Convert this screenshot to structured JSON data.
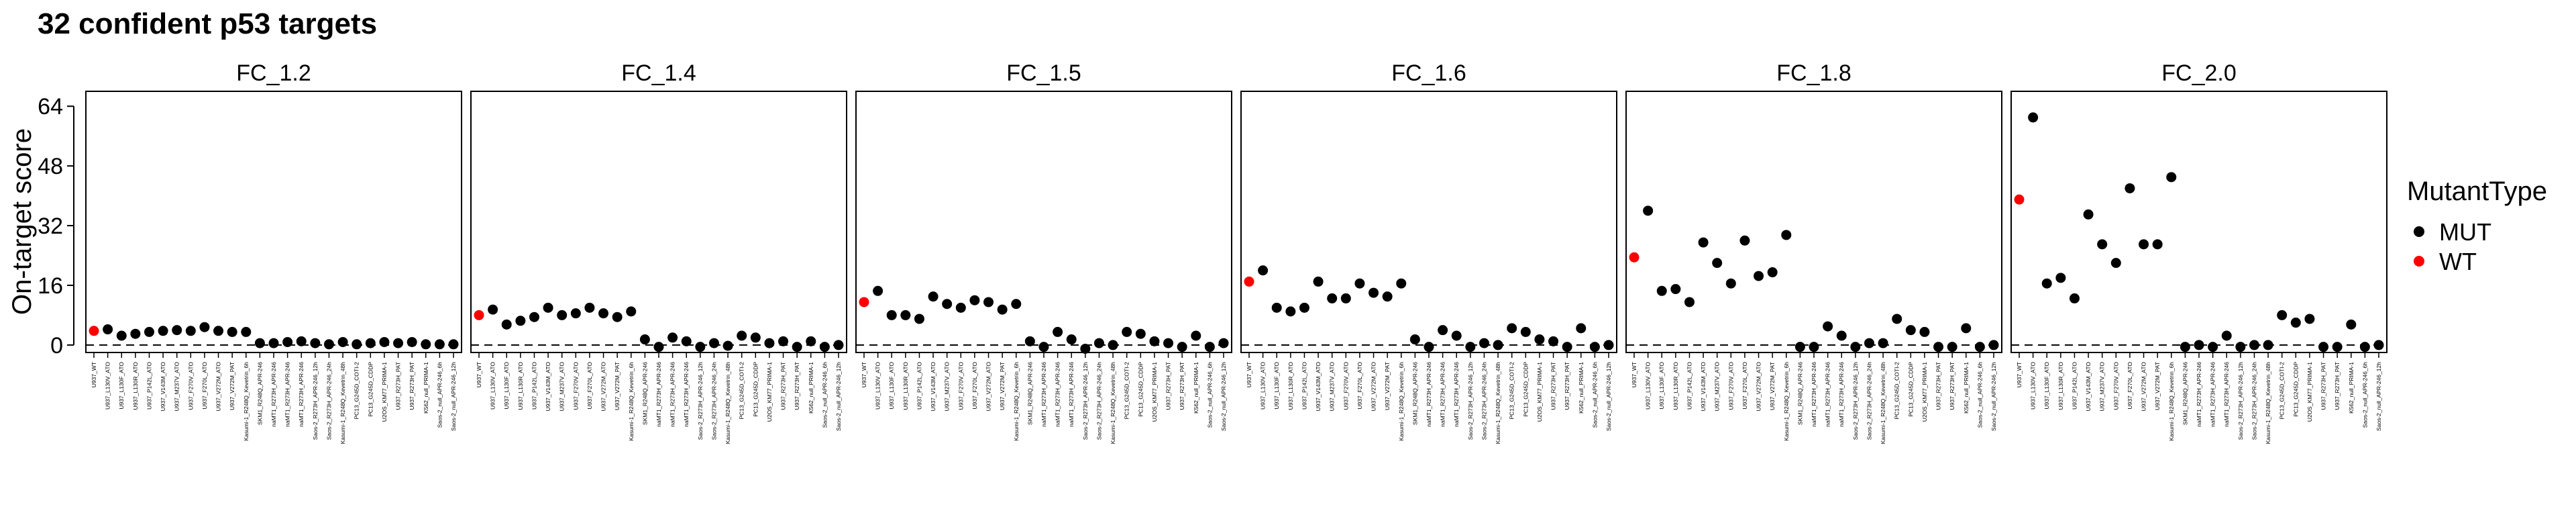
{
  "chart_data": {
    "type": "scatter",
    "title": "32 confident p53 targets",
    "ylabel": "On-target score",
    "xlabel": "",
    "ylim": [
      -2,
      68
    ],
    "yticks": [
      0,
      16,
      32,
      48,
      64
    ],
    "hline": 0,
    "grid": false,
    "legend": {
      "title": "MutantType",
      "position": "right",
      "entries": [
        {
          "label": "MUT",
          "color": "#000000"
        },
        {
          "label": "WT",
          "color": "#ff0000"
        }
      ]
    },
    "categories": [
      "U937_WT",
      "U937_L130V_ATO",
      "U937_L130F_ATO",
      "U937_L130R_ATO",
      "U937_P142L_ATO",
      "U937_V143M_ATO",
      "U937_M237V_ATO",
      "U937_F270V_ATO",
      "U937_F270L_ATO",
      "U937_V272M_ATO",
      "U937_V272M_PAT",
      "Kasumi-1_R248Q_Kevetrin_6h",
      "SKM1_R248Q_APR-246",
      "naMT1_R273H_APR-246",
      "naMT1_R273H_APR-246",
      "naMT1_R273H_APR-246",
      "Saos-2_R273H_APR-246_12h",
      "Saos-2_R273H_APR-246_24h",
      "Kasumi-1_R248Q_Kevetrin_48h",
      "PC13_G245D_COTI-2",
      "PC13_G245D_CDDP",
      "U2OS_KM77_PRIMA-1",
      "U937_R273H_PAT",
      "U937_R273H_PAT",
      "K562_null_PRIMA-1",
      "Saos-2_null_APR-246_6h",
      "Saos-2_null_APR-246_12h"
    ],
    "mutant_type": [
      "WT",
      "MUT",
      "MUT",
      "MUT",
      "MUT",
      "MUT",
      "MUT",
      "MUT",
      "MUT",
      "MUT",
      "MUT",
      "MUT",
      "MUT",
      "MUT",
      "MUT",
      "MUT",
      "MUT",
      "MUT",
      "MUT",
      "MUT",
      "MUT",
      "MUT",
      "MUT",
      "MUT",
      "MUT",
      "MUT",
      "MUT"
    ],
    "facet_categories": [
      [
        "U937_WT",
        "U937_L130V_ATO",
        "U937_L130F_ATO",
        "U937_L130R_ATO",
        "U937_P142L_ATO",
        "U937_V143M_ATO",
        "U937_M237V_ATO",
        "U937_F270V_ATO",
        "U937_F270L_ATO",
        "U937_V272M_ATO",
        "U937_V272M_PAT",
        "Kasumi-1_R248Q_Kevetrin_6h",
        "SKM1_R248Q_APR-246",
        "naMT1_R273H_APR-246",
        "naMT1_R273H_APR-246",
        "naMT1_R273H_APR-246",
        "Saos-2_R273H_APR-246_12h",
        "Saos-2_R273H_APR-246_24h",
        "Kasumi-1_R248Q_Kevetrin_48h",
        "PC13_G245D_COTI-2",
        "PC13_G245D_CDDP",
        "U2OS_KM77_PRIMA-1",
        "U937_R273H_PAT",
        "U937_R273H_PAT",
        "K562_null_PRIMA-1",
        "Saos-2_null_APR-246_6h",
        "Saos-2_null_APR-246_12h"
      ],
      [
        "U937_WT",
        "U937_L130V_ATO",
        "U937_L130F_ATO",
        "U937_L130R_ATO",
        "U937_P142L_ATO",
        "U937_V143M_ATO",
        "U937_M237V_ATO",
        "U937_F270V_ATO",
        "U937_F270L_ATO",
        "U937_V272M_ATO",
        "U937_V272M_PAT",
        "Kasumi-1_R248Q_Kevetrin_6h",
        "SKM1_R248Q_APR-246",
        "naMT1_R273H_APR-246",
        "naMT1_R273H_APR-246",
        "naMT1_R273H_APR-246",
        "Saos-2_R273H_APR-246_12h",
        "Saos-2_R273H_APR-246_24h",
        "Kasumi-1_R248Q_Kevetrin_48h",
        "PC13_G245D_COTI-2",
        "PC13_G245D_CDDP",
        "U2OS_KM77_PRIMA-1",
        "U937_R273H_PAT",
        "U937_R273H_PAT",
        "K562_null_PRIMA-1",
        "Saos-2_null_APR-246_6h",
        "Saos-2_null_APR-246_12h"
      ],
      [
        "U937_WT",
        "U937_L130V_ATO",
        "U937_L130F_ATO",
        "U937_L130R_ATO",
        "U937_P142L_ATO",
        "U937_V143M_ATO",
        "U937_M237V_ATO",
        "U937_F270V_ATO",
        "U937_F270L_ATO",
        "U937_V272M_ATO",
        "U937_V272M_PAT",
        "Kasumi-1_R248Q_Kevetrin_6h",
        "SKM1_R248Q_APR-246",
        "naMT1_R273H_APR-246",
        "naMT1_R273H_APR-246",
        "naMT1_R273H_APR-246",
        "Saos-2_R273H_APR-246_12h",
        "Saos-2_R273H_APR-246_24h",
        "Kasumi-1_R248Q_Kevetrin_48h",
        "PC13_G245D_COTI-2",
        "PC13_G245D_CDDP",
        "U2OS_KM77_PRIMA-1",
        "U937_R273H_PAT",
        "U937_R273H_PAT",
        "K562_null_PRIMA-1",
        "Saos-2_null_APR-246_6h",
        "Saos-2_null_APR-246_12h"
      ],
      [
        "U937_WT",
        "U937_L130V_ATO",
        "U937_L130F_ATO",
        "U937_L130R_ATO",
        "U937_P142L_ATO",
        "U937_V143M_ATO",
        "U937_M237V_ATO",
        "U937_F270V_ATO",
        "U937_F270L_ATO",
        "U937_V272M_ATO",
        "U937_V272M_PAT",
        "Kasumi-1_R248Q_Kevetrin_6h",
        "SKM1_R248Q_APR-246",
        "naMT1_R273H_APR-246",
        "naMT1_R273H_APR-246",
        "naMT1_R273H_APR-246",
        "Saos-2_R273H_APR-246_12h",
        "Saos-2_R273H_APR-246_24h",
        "Kasumi-1_R248Q_Kevetrin_48h",
        "PC13_G245D_COTI-2",
        "PC13_G245D_CDDP",
        "U2OS_KM77_PRIMA-1",
        "U937_R273H_PAT",
        "U937_R273H_PAT",
        "K562_null_PRIMA-1",
        "Saos-2_null_APR-246_6h",
        "Saos-2_null_APR-246_12h"
      ],
      [
        "U937_WT",
        "U937_L130V_ATO",
        "U937_L130F_ATO",
        "U937_L130R_ATO",
        "U937_P142L_ATO",
        "U937_V143M_ATO",
        "U937_M237V_ATO",
        "U937_F270V_ATO",
        "U937_F270L_ATO",
        "U937_V272M_ATO",
        "U937_V272M_PAT",
        "Kasumi-1_R248Q_Kevetrin_6h",
        "SKM1_R248Q_APR-246",
        "naMT1_R273H_APR-246",
        "naMT1_R273H_APR-246",
        "naMT1_R273H_APR-246",
        "Saos-2_R273H_APR-246_12h",
        "Saos-2_R273H_APR-246_24h",
        "Kasumi-1_R248Q_Kevetrin_48h",
        "PC13_G245D_COTI-2",
        "PC13_G245D_CDDP",
        "U2OS_KM77_PRIMA-1",
        "U937_R273H_PAT",
        "U937_R273H_PAT",
        "K562_null_PRIMA-1",
        "Saos-2_null_APR-246_6h",
        "Saos-2_null_APR-246_12h"
      ],
      [
        "U937_WT",
        "U937_L130V_ATO",
        "U937_L130F_ATO",
        "U937_L130R_ATO",
        "U937_P142L_ATO",
        "U937_V143M_ATO",
        "U937_M237V_ATO",
        "U937_F270V_ATO",
        "U937_F270L_ATO",
        "U937_V272M_ATO",
        "U937_V272M_PAT",
        "Kasumi-1_R248Q_Kevetrin_6h",
        "SKM1_R248Q_APR-246",
        "naMT1_R273H_APR-246",
        "naMT1_R273H_APR-246",
        "naMT1_R273H_APR-246",
        "Saos-2_R273H_APR-246_12h",
        "Saos-2_R273H_APR-246_24h",
        "Kasumi-1_R248Q_Kevetrin_48h",
        "PC13_G245D_COTI-2",
        "PC13_G245D_CDDP",
        "U2OS_KM77_PRIMA-1",
        "U937_R273H_PAT",
        "U937_R273H_PAT",
        "K562_null_PRIMA-1",
        "Saos-2_null_APR-246_6h",
        "Saos-2_null_APR-246_12h"
      ]
    ],
    "facets": [
      {
        "name": "FC_1.2",
        "values": [
          3.8,
          4.2,
          2.5,
          3.0,
          3.5,
          3.8,
          4.0,
          3.8,
          4.8,
          3.8,
          3.5,
          3.5,
          0.5,
          0.5,
          0.8,
          1.0,
          0.5,
          0.2,
          0.8,
          0.2,
          0.5,
          0.8,
          0.5,
          0.8,
          0.2,
          0.2,
          0.2
        ]
      },
      {
        "name": "FC_1.4",
        "values": [
          8.0,
          9.5,
          5.5,
          6.5,
          7.5,
          10.0,
          8.0,
          8.5,
          10.0,
          8.5,
          7.5,
          9.0,
          1.5,
          -0.5,
          2.0,
          1.0,
          -0.5,
          0.5,
          -0.2,
          2.5,
          2.0,
          0.5,
          1.0,
          -0.5,
          1.0,
          -0.5,
          0.0
        ]
      },
      {
        "name": "FC_1.5",
        "values": [
          11.5,
          14.5,
          8.0,
          8.0,
          7.0,
          13.0,
          11.0,
          10.0,
          12.0,
          11.5,
          9.5,
          11.0,
          1.0,
          -0.5,
          3.5,
          1.5,
          -1.0,
          0.5,
          0.0,
          3.5,
          3.0,
          1.0,
          0.5,
          -0.5,
          2.5,
          -0.5,
          0.5
        ]
      },
      {
        "name": "FC_1.6",
        "values": [
          17.0,
          20.0,
          10.0,
          9.0,
          10.0,
          17.0,
          12.5,
          12.5,
          16.5,
          14.0,
          13.0,
          16.5,
          1.5,
          -0.5,
          4.0,
          2.5,
          -0.5,
          0.5,
          0.0,
          4.5,
          3.5,
          1.5,
          1.0,
          -0.5,
          4.5,
          -0.5,
          0.0
        ]
      },
      {
        "name": "FC_1.8",
        "values": [
          23.5,
          36.0,
          14.5,
          15.0,
          11.5,
          27.5,
          22.0,
          16.5,
          28.0,
          18.5,
          19.5,
          29.5,
          -0.5,
          -0.5,
          5.0,
          2.5,
          -0.5,
          0.5,
          0.5,
          7.0,
          4.0,
          3.5,
          -0.5,
          -0.5,
          4.5,
          -0.5,
          0.0
        ]
      },
      {
        "name": "FC_2.0",
        "values": [
          39.0,
          61.0,
          16.5,
          18.0,
          12.5,
          35.0,
          27.0,
          22.0,
          42.0,
          27.0,
          27.0,
          45.0,
          -0.5,
          0.0,
          -0.5,
          2.5,
          -0.5,
          0.0,
          0.0,
          8.0,
          6.0,
          7.0,
          -0.5,
          -0.5,
          5.5,
          -0.5,
          0.0
        ]
      }
    ]
  }
}
